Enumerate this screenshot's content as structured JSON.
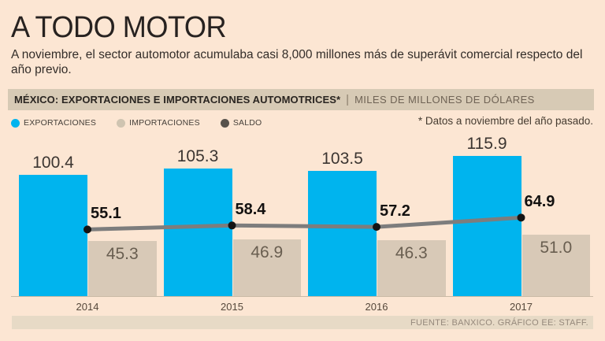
{
  "page": {
    "title": "A TODO MOTOR",
    "subtitle": "A noviembre, el sector automotor acumulaba casi 8,000 millones más de superávit comercial respecto del año previo."
  },
  "chart_header": {
    "title": "MÉXICO: EXPORTACIONES E IMPORTACIONES AUTOMOTRICES*",
    "divider": "|",
    "units": "MILES DE MILLONES DE DÓLARES"
  },
  "legend": {
    "items": [
      {
        "label": "EXPORTACIONES",
        "color": "#00b4ee"
      },
      {
        "label": "IMPORTACIONES",
        "color": "#cfc4b1"
      },
      {
        "label": "SALDO",
        "color": "#57524c"
      }
    ],
    "note": "* Datos a noviembre del año pasado."
  },
  "chart_data": {
    "type": "bar",
    "categories": [
      "2014",
      "2015",
      "2016",
      "2017"
    ],
    "series": [
      {
        "name": "EXPORTACIONES",
        "type": "bar",
        "color": "#00b4ee",
        "values": [
          100.4,
          105.3,
          103.5,
          115.9
        ]
      },
      {
        "name": "IMPORTACIONES",
        "type": "bar",
        "color": "#d8c9b7",
        "values": [
          45.3,
          46.9,
          46.3,
          51.0
        ]
      },
      {
        "name": "SALDO",
        "type": "line",
        "color": "#7d7d7d",
        "dot_color": "#141414",
        "values": [
          55.1,
          58.4,
          57.2,
          64.9
        ]
      }
    ],
    "ylim": [
      0,
      120
    ],
    "grid": false,
    "legend_position": "top-left",
    "value_labels": true
  },
  "footer": {
    "source": "FUENTE: BANXICO. GRÁFICO EE: STAFF."
  }
}
